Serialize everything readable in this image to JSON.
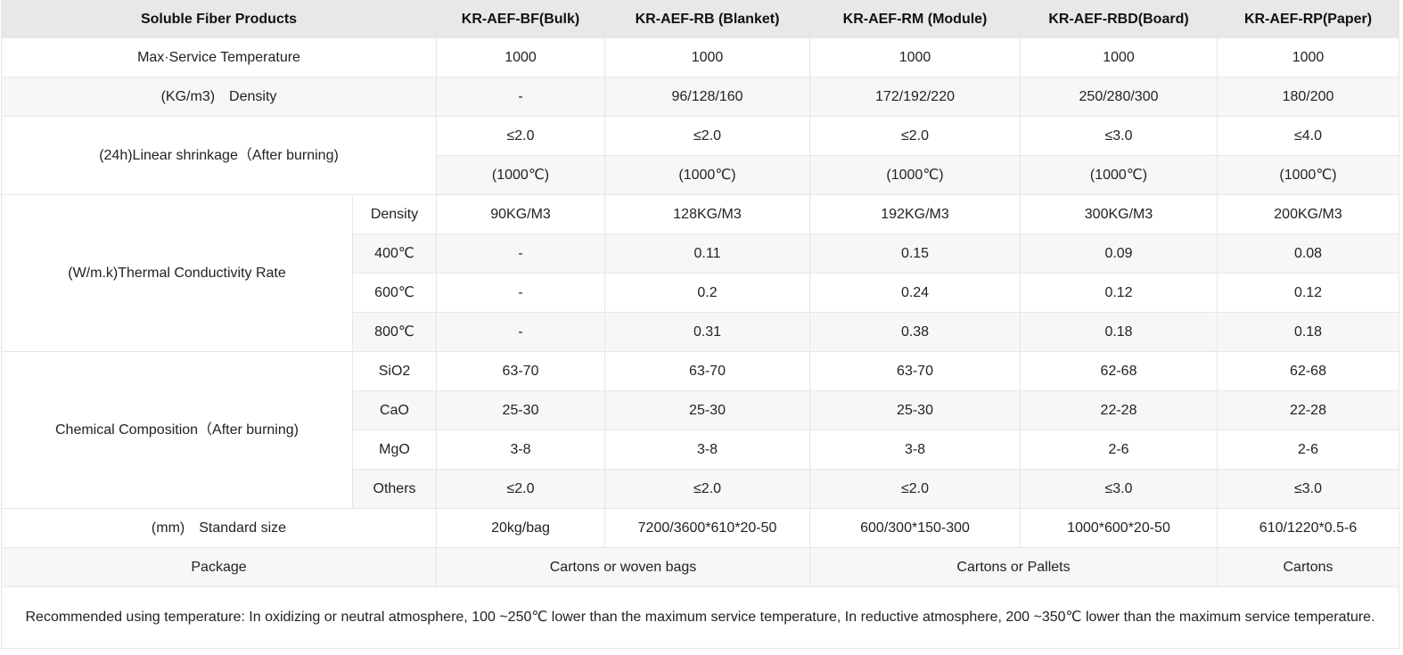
{
  "header": {
    "label": "Soluble Fiber Products",
    "products": [
      "KR-AEF-BF(Bulk)",
      "KR-AEF-RB (Blanket)",
      "KR-AEF-RM (Module)",
      "KR-AEF-RBD(Board)",
      "KR-AEF-RP(Paper)"
    ]
  },
  "max_temp": {
    "label": "Max·Service Temperature",
    "values": [
      "1000",
      "1000",
      "1000",
      "1000",
      "1000"
    ]
  },
  "density": {
    "label": "(KG/m3)　Density",
    "values": [
      "-",
      "96/128/160",
      "172/192/220",
      "250/280/300",
      "180/200"
    ]
  },
  "shrinkage": {
    "label": "(24h)Linear shrinkage（After burning)",
    "values": [
      "≤2.0",
      "≤2.0",
      "≤2.0",
      "≤3.0",
      "≤4.0"
    ],
    "temps": [
      "(1000℃)",
      "(1000℃)",
      "(1000℃)",
      "(1000℃)",
      "(1000℃)"
    ]
  },
  "thermal": {
    "label": "(W/m.k)Thermal Conductivity Rate",
    "rows": [
      {
        "sub": "Density",
        "values": [
          "90KG/M3",
          "128KG/M3",
          "192KG/M3",
          "300KG/M3",
          "200KG/M3"
        ]
      },
      {
        "sub": "400℃",
        "values": [
          "-",
          "0.11",
          "0.15",
          "0.09",
          "0.08"
        ]
      },
      {
        "sub": "600℃",
        "values": [
          "-",
          "0.2",
          "0.24",
          "0.12",
          "0.12"
        ]
      },
      {
        "sub": "800℃",
        "values": [
          "-",
          "0.31",
          "0.38",
          "0.18",
          "0.18"
        ]
      }
    ]
  },
  "chemical": {
    "label": "Chemical Composition（After burning)",
    "rows": [
      {
        "sub": "SiO2",
        "values": [
          "63-70",
          "63-70",
          "63-70",
          "62-68",
          "62-68"
        ]
      },
      {
        "sub": "CaO",
        "values": [
          "25-30",
          "25-30",
          "25-30",
          "22-28",
          "22-28"
        ]
      },
      {
        "sub": "MgO",
        "values": [
          "3-8",
          "3-8",
          "3-8",
          "2-6",
          "2-6"
        ]
      },
      {
        "sub": "Others",
        "values": [
          "≤2.0",
          "≤2.0",
          "≤2.0",
          "≤3.0",
          "≤3.0"
        ]
      }
    ]
  },
  "size": {
    "label": "(mm)　Standard size",
    "values": [
      "20kg/bag",
      "7200/3600*610*20-50",
      "600/300*150-300",
      "1000*600*20-50",
      "610/1220*0.5-6"
    ]
  },
  "package": {
    "label": "Package",
    "values": [
      "Cartons or woven bags",
      "Cartons or Pallets",
      "Cartons"
    ]
  },
  "note": "Recommended using temperature: In oxidizing or neutral atmosphere, 100 ~250℃ lower than the maximum service temperature, In reductive atmosphere, 200 ~350℃ lower than the maximum service temperature."
}
